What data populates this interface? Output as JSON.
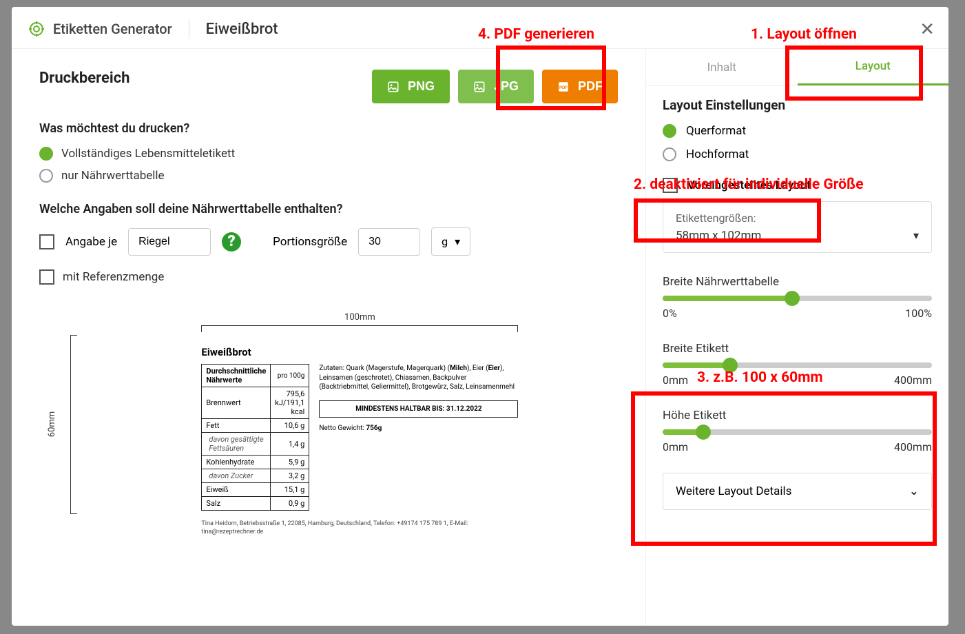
{
  "header": {
    "app_title": "Etiketten Generator",
    "recipe_title": "Eiweißbrot",
    "accent_color": "#6ab42d"
  },
  "export": {
    "section_title": "Druckbereich",
    "png_label": "PNG",
    "jpg_label": "JPG",
    "pdf_label": "PDF",
    "png_color": "#57a81a",
    "jpg_color": "#6cb431",
    "pdf_color": "#ef7d00"
  },
  "print_options": {
    "question": "Was möchtest du drucken?",
    "opt_full": "Vollständiges Lebensmitteletikett",
    "opt_nutri_only": "nur Nährwerttabelle"
  },
  "nutri_config": {
    "question": "Welche Angaben soll deine Nährwerttabelle enthalten?",
    "per_label": "Angabe je",
    "per_value": "Riegel",
    "portion_label": "Portionsgröße",
    "portion_value": "30",
    "unit": "g",
    "ref_label": "mit Referenzmenge"
  },
  "preview": {
    "width_label": "100mm",
    "height_label": "60mm",
    "product_name": "Eiweißbrot",
    "header_left": "Durchschnittliche Nährwerte",
    "header_right": "pro 100g",
    "rows": [
      {
        "name": "Brennwert",
        "value": "795,6 kJ/191,1 kcal",
        "indent": false
      },
      {
        "name": "Fett",
        "value": "10,6 g",
        "indent": false
      },
      {
        "name": "davon gesättigte Fettsäuren",
        "value": "1,4 g",
        "indent": true
      },
      {
        "name": "Kohlenhydrate",
        "value": "5,9 g",
        "indent": false
      },
      {
        "name": "davon Zucker",
        "value": "3,2 g",
        "indent": true
      },
      {
        "name": "Eiweiß",
        "value": "15,1 g",
        "indent": false
      },
      {
        "name": "Salz",
        "value": "0,9 g",
        "indent": false
      }
    ],
    "ingredients_html": "Zutaten: Quark (Magerstufe, Magerquark) (<b>Milch</b>), Eier (<b>Eier</b>), Leinsamen (geschrotet), Chiasamen, Backpulver (Backtriebmittel, Geliermittel), Brotgewürz, Salz, Leinsamenmehl",
    "best_before": "MINDESTENS HALTBAR BIS: 31.12.2022",
    "net_weight_label": "Netto Gewicht: ",
    "net_weight_value": "756g",
    "producer": "Tina Heidorn, Betriebsstraße 1, 22085, Hamburg, Deutschland, Telefon: +49174 175 789 1, E-Mail: tina@rezeptrechner.de"
  },
  "sidebar": {
    "tab_content": "Inhalt",
    "tab_layout": "Layout",
    "settings_title": "Layout Einstellungen",
    "landscape": "Querformat",
    "portrait": "Hochformat",
    "preset_checkbox_label": "Voreingestelltes Layout",
    "preset_size_label": "Etikettengrößen:",
    "preset_size_value": "58mm x 102mm",
    "sliders": [
      {
        "label": "Breite Nährwerttabelle",
        "min": "0%",
        "max": "100%",
        "fill_pct": 48
      },
      {
        "label": "Breite Etikett",
        "min": "0mm",
        "max": "400mm",
        "fill_pct": 25
      },
      {
        "label": "Höhe Etikett",
        "min": "0mm",
        "max": "400mm",
        "fill_pct": 15
      }
    ],
    "accordion_label": "Weitere Layout Details"
  },
  "annotations": {
    "step1": "1. Layout öffnen",
    "step2": "2. deaktiviert für individuelle Größe",
    "step3": "3. z.B. 100 x 60mm",
    "step4": "4. PDF generieren",
    "anno_color": "#ff0000"
  }
}
